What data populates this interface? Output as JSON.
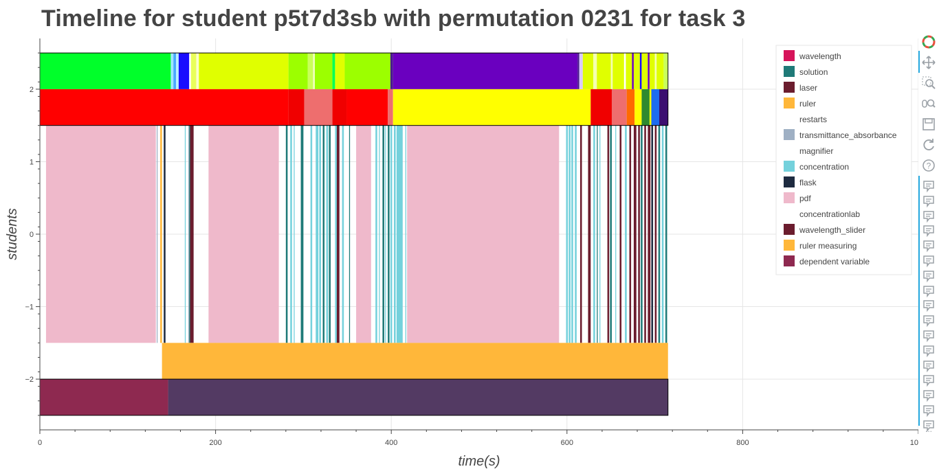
{
  "toolbar": {
    "tools": [
      "bokeh-logo-icon",
      "pan-icon",
      "box-zoom-icon",
      "wheel-zoom-icon",
      "save-icon",
      "reset-icon",
      "help-icon"
    ],
    "hover_tool_count": 17,
    "more_label": "..."
  },
  "colors": {
    "grid": "#e5e5e5",
    "axis": "#444444",
    "title": "#444444"
  },
  "chart_data": {
    "type": "timeline",
    "title": "Timeline for student p5t7d3sb with permutation 0231 for task 3",
    "xlabel": "time(s)",
    "ylabel": "students",
    "xlim": [
      0,
      1000
    ],
    "ylim": [
      -2.7,
      2.7
    ],
    "x_ticks": [
      0,
      200,
      400,
      600,
      800,
      1000
    ],
    "x_tick_labels": [
      "0",
      "200",
      "400",
      "600",
      "800",
      "1000"
    ],
    "y_ticks": [
      -2,
      -1,
      0,
      1,
      2
    ],
    "y_tick_labels": [
      "−2",
      "−1",
      "0",
      "1",
      "2"
    ],
    "grid": true,
    "legend_position": "top-right",
    "legend": [
      {
        "label": "wavelength",
        "color": "#d6145a"
      },
      {
        "label": "solution",
        "color": "#1f7a78"
      },
      {
        "label": "laser",
        "color": "#6b1d2e"
      },
      {
        "label": "ruler",
        "color": "#ffb73a"
      },
      {
        "label": "restarts",
        "color": "#ffffff"
      },
      {
        "label": "transmittance_absorbance",
        "color": "#9fb0c4"
      },
      {
        "label": "magnifier",
        "color": "#ffffff"
      },
      {
        "label": "concentration",
        "color": "#74d1dc"
      },
      {
        "label": "flask",
        "color": "#1e2b40"
      },
      {
        "label": "pdf",
        "color": "#efb9cb"
      },
      {
        "label": "concentrationlab",
        "color": "#ffffff"
      },
      {
        "label": "wavelength_slider",
        "color": "#6b1d2e"
      },
      {
        "label": "ruler measuring",
        "color": "#ffb73a"
      },
      {
        "label": "dependent variable",
        "color": "#8e2950"
      }
    ],
    "rows": [
      {
        "y_range": [
          2,
          2.5
        ],
        "segments": [
          {
            "start": 0,
            "end": 149,
            "color": "#00ff2a"
          },
          {
            "start": 149,
            "end": 152,
            "color": "#9ee7ff"
          },
          {
            "start": 152,
            "end": 155,
            "color": "#4aa8ff"
          },
          {
            "start": 155,
            "end": 158,
            "color": "#b8f0ff"
          },
          {
            "start": 158,
            "end": 170,
            "color": "#1a0dff"
          },
          {
            "start": 170,
            "end": 172,
            "color": "#ffffff"
          },
          {
            "start": 172,
            "end": 178,
            "color": "#e9ff5a"
          },
          {
            "start": 178,
            "end": 181,
            "color": "#fbffcc"
          },
          {
            "start": 181,
            "end": 283,
            "color": "#e0ff00"
          },
          {
            "start": 283,
            "end": 305,
            "color": "#9cff00"
          },
          {
            "start": 305,
            "end": 311,
            "color": "#c9ff5a"
          },
          {
            "start": 311,
            "end": 313,
            "color": "#f1ffc0"
          },
          {
            "start": 313,
            "end": 333,
            "color": "#9cff00"
          },
          {
            "start": 333,
            "end": 336,
            "color": "#00ff55"
          },
          {
            "start": 336,
            "end": 347,
            "color": "#e0ff00"
          },
          {
            "start": 347,
            "end": 399,
            "color": "#9cff00"
          },
          {
            "start": 399,
            "end": 402,
            "color": "#4b1a8f"
          },
          {
            "start": 402,
            "end": 612,
            "color": "#6a00bf"
          },
          {
            "start": 612,
            "end": 614,
            "color": "#4b1a8f"
          },
          {
            "start": 614,
            "end": 618,
            "color": "#d9c9ff"
          },
          {
            "start": 618,
            "end": 630,
            "color": "#e0ff00"
          },
          {
            "start": 630,
            "end": 634,
            "color": "#f4ffb0"
          },
          {
            "start": 634,
            "end": 650,
            "color": "#e0ff00"
          },
          {
            "start": 650,
            "end": 652,
            "color": "#f4ffb0"
          },
          {
            "start": 652,
            "end": 665,
            "color": "#e0ff00"
          },
          {
            "start": 665,
            "end": 667,
            "color": "#ffffff"
          },
          {
            "start": 667,
            "end": 674,
            "color": "#e0ff00"
          },
          {
            "start": 674,
            "end": 676,
            "color": "#6a00bf"
          },
          {
            "start": 676,
            "end": 683,
            "color": "#e0ff00"
          },
          {
            "start": 683,
            "end": 685,
            "color": "#1a0dff"
          },
          {
            "start": 685,
            "end": 692,
            "color": "#e0ff00"
          },
          {
            "start": 692,
            "end": 694,
            "color": "#6a00bf"
          },
          {
            "start": 694,
            "end": 700,
            "color": "#e0ff00"
          },
          {
            "start": 700,
            "end": 702,
            "color": "#f4ffb0"
          },
          {
            "start": 702,
            "end": 710,
            "color": "#e0ff00"
          },
          {
            "start": 710,
            "end": 715,
            "color": "#c9ff5a"
          }
        ]
      },
      {
        "y_range": [
          1.5,
          2
        ],
        "segments": [
          {
            "start": 0,
            "end": 283,
            "color": "#ff0000"
          },
          {
            "start": 283,
            "end": 301,
            "color": "#f00000"
          },
          {
            "start": 301,
            "end": 333,
            "color": "#ee6e6e"
          },
          {
            "start": 333,
            "end": 349,
            "color": "#f00000"
          },
          {
            "start": 349,
            "end": 396,
            "color": "#ff0000"
          },
          {
            "start": 396,
            "end": 402,
            "color": "#ee6e6e"
          },
          {
            "start": 402,
            "end": 627,
            "color": "#ffff00"
          },
          {
            "start": 627,
            "end": 651,
            "color": "#f00000"
          },
          {
            "start": 651,
            "end": 668,
            "color": "#ee6e6e"
          },
          {
            "start": 668,
            "end": 677,
            "color": "#ff6a00"
          },
          {
            "start": 677,
            "end": 685,
            "color": "#ffff00"
          },
          {
            "start": 685,
            "end": 694,
            "color": "#2f8a2f"
          },
          {
            "start": 694,
            "end": 696,
            "color": "#ffff00"
          },
          {
            "start": 696,
            "end": 705,
            "color": "#1e6cf0"
          },
          {
            "start": 705,
            "end": 715,
            "color": "#3b0f70"
          }
        ]
      },
      {
        "y_range": [
          -1.5,
          1.5
        ],
        "segments": [
          {
            "start": 7,
            "end": 132,
            "color": "#efb9cb"
          },
          {
            "start": 133,
            "end": 134,
            "color": "#9fb0c4"
          },
          {
            "start": 137,
            "end": 139,
            "color": "#ffb73a"
          },
          {
            "start": 141,
            "end": 143,
            "color": "#1e2b40"
          },
          {
            "start": 165,
            "end": 166,
            "color": "#74d1dc"
          },
          {
            "start": 169,
            "end": 170,
            "color": "#9fb0c4"
          },
          {
            "start": 170,
            "end": 171,
            "color": "#1f7a78"
          },
          {
            "start": 171,
            "end": 175,
            "color": "#6b1d2e"
          },
          {
            "start": 192,
            "end": 272,
            "color": "#efb9cb"
          },
          {
            "start": 280,
            "end": 282,
            "color": "#1f7a78"
          },
          {
            "start": 285,
            "end": 287,
            "color": "#74d1dc"
          },
          {
            "start": 289,
            "end": 290,
            "color": "#74d1dc"
          },
          {
            "start": 297,
            "end": 300,
            "color": "#1f7a78"
          },
          {
            "start": 308,
            "end": 310,
            "color": "#74d1dc"
          },
          {
            "start": 314,
            "end": 317,
            "color": "#74d1dc"
          },
          {
            "start": 318,
            "end": 320,
            "color": "#74d1dc"
          },
          {
            "start": 322,
            "end": 324,
            "color": "#1f7a78"
          },
          {
            "start": 326,
            "end": 328,
            "color": "#74d1dc"
          },
          {
            "start": 329,
            "end": 331,
            "color": "#1f7a78"
          },
          {
            "start": 336,
            "end": 338,
            "color": "#74d1dc"
          },
          {
            "start": 338,
            "end": 341,
            "color": "#6b1d2e"
          },
          {
            "start": 344,
            "end": 346,
            "color": "#74d1dc"
          },
          {
            "start": 352,
            "end": 353,
            "color": "#1f7a78"
          },
          {
            "start": 360,
            "end": 377,
            "color": "#efb9cb"
          },
          {
            "start": 382,
            "end": 384,
            "color": "#74d1dc"
          },
          {
            "start": 386,
            "end": 387,
            "color": "#74d1dc"
          },
          {
            "start": 390,
            "end": 392,
            "color": "#1f7a78"
          },
          {
            "start": 393,
            "end": 394,
            "color": "#74d1dc"
          },
          {
            "start": 396,
            "end": 398,
            "color": "#1f7a78"
          },
          {
            "start": 399,
            "end": 401,
            "color": "#74d1dc"
          },
          {
            "start": 403,
            "end": 405,
            "color": "#74d1dc"
          },
          {
            "start": 406,
            "end": 413,
            "color": "#74d1dc"
          },
          {
            "start": 416,
            "end": 417,
            "color": "#74d1dc"
          },
          {
            "start": 418,
            "end": 591,
            "color": "#efb9cb"
          },
          {
            "start": 599,
            "end": 601,
            "color": "#74d1dc"
          },
          {
            "start": 602,
            "end": 604,
            "color": "#74d1dc"
          },
          {
            "start": 605,
            "end": 607,
            "color": "#74d1dc"
          },
          {
            "start": 609,
            "end": 611,
            "color": "#74d1dc"
          },
          {
            "start": 615,
            "end": 617,
            "color": "#6b1d2e"
          },
          {
            "start": 624,
            "end": 627,
            "color": "#6b1d2e"
          },
          {
            "start": 630,
            "end": 632,
            "color": "#74d1dc"
          },
          {
            "start": 634,
            "end": 635,
            "color": "#1f7a78"
          },
          {
            "start": 637,
            "end": 638,
            "color": "#74d1dc"
          },
          {
            "start": 646,
            "end": 648,
            "color": "#6b1d2e"
          },
          {
            "start": 649,
            "end": 651,
            "color": "#1f7a78"
          },
          {
            "start": 655,
            "end": 656,
            "color": "#74d1dc"
          },
          {
            "start": 660,
            "end": 662,
            "color": "#6b1d2e"
          },
          {
            "start": 666,
            "end": 668,
            "color": "#74d1dc"
          },
          {
            "start": 671,
            "end": 673,
            "color": "#6b1d2e"
          },
          {
            "start": 676,
            "end": 679,
            "color": "#6b1d2e"
          },
          {
            "start": 681,
            "end": 683,
            "color": "#6b1d2e"
          },
          {
            "start": 684,
            "end": 686,
            "color": "#1f7a78"
          },
          {
            "start": 688,
            "end": 690,
            "color": "#6b1d2e"
          },
          {
            "start": 692,
            "end": 695,
            "color": "#6b1d2e"
          },
          {
            "start": 696,
            "end": 698,
            "color": "#1e2b40"
          },
          {
            "start": 700,
            "end": 702,
            "color": "#6b1d2e"
          },
          {
            "start": 704,
            "end": 706,
            "color": "#1f7a78"
          },
          {
            "start": 708,
            "end": 710,
            "color": "#74d1dc"
          },
          {
            "start": 712,
            "end": 714,
            "color": "#1f7a78"
          }
        ]
      },
      {
        "y_range": [
          -2,
          -1.5
        ],
        "segments": [
          {
            "start": 139,
            "end": 715,
            "color": "#ffb73a"
          }
        ]
      },
      {
        "y_range": [
          -2.5,
          -2
        ],
        "segments": [
          {
            "start": 0,
            "end": 146,
            "color": "#8e2950"
          },
          {
            "start": 146,
            "end": 715,
            "color": "#533a63"
          }
        ]
      }
    ],
    "outlines": [
      {
        "start": 0,
        "end": 715,
        "y_range": [
          1.5,
          2.5
        ]
      },
      {
        "start": 0,
        "end": 715,
        "y_range": [
          -2.5,
          -2
        ]
      }
    ]
  }
}
